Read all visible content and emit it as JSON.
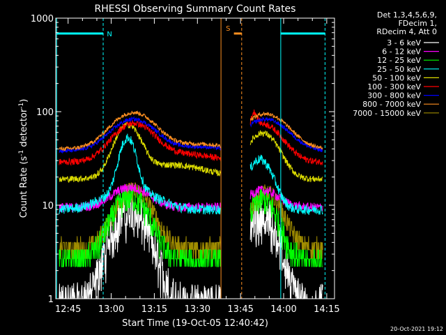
{
  "chart_data": {
    "type": "line",
    "title": "RHESSI Observing Summary Count Rates",
    "xlabel": "Start Time (19-Oct-05 12:40:42)",
    "ylabel_main": "Count Rate (s",
    "ylabel_sup1": "-1",
    "ylabel_mid": " detector",
    "ylabel_sup2": "-1",
    "ylabel_end": ")",
    "y_scale": "log",
    "ylim": [
      1,
      1000
    ],
    "xlim_minutes": [
      0,
      97
    ],
    "x_ticks": [
      {
        "label": "12:45",
        "min": 4.3
      },
      {
        "label": "13:00",
        "min": 19.3
      },
      {
        "label": "13:15",
        "min": 34.3
      },
      {
        "label": "13:30",
        "min": 49.3
      },
      {
        "label": "13:45",
        "min": 64.3
      },
      {
        "label": "14:00",
        "min": 79.3
      },
      {
        "label": "14:15",
        "min": 94.3
      }
    ],
    "y_ticks": [
      {
        "label": "1",
        "value": 1
      },
      {
        "label": "10",
        "value": 10
      },
      {
        "label": "100",
        "value": 100
      },
      {
        "label": "1000",
        "value": 1000
      }
    ],
    "legend": {
      "header": [
        "Det 1,3,4,5,6,9,",
        "FDecim 1,",
        "RDecim 4, Att 0"
      ],
      "placement": "right"
    },
    "series": [
      {
        "name": "3 - 6 keV",
        "color": "#ffffff"
      },
      {
        "name": "6 - 12 keV",
        "color": "#ff00ff"
      },
      {
        "name": "12 - 25 keV",
        "color": "#00ff00"
      },
      {
        "name": "25 - 50 keV",
        "color": "#00ffff"
      },
      {
        "name": "50 - 100 keV",
        "color": "#dcdc00"
      },
      {
        "name": "100 - 300 keV",
        "color": "#ff0000"
      },
      {
        "name": "300 - 800 keV",
        "color": "#0000ff"
      },
      {
        "name": "800 - 7000 keV",
        "color": "#ff9020"
      },
      {
        "name": "7000 - 15000 keV",
        "color": "#a08c00"
      }
    ],
    "gaps_minutes": [
      [
        57.5,
        67.5
      ]
    ],
    "annotations": [
      {
        "text": "N",
        "color": "#00ffff"
      },
      {
        "text": "S",
        "color": "#ff9020"
      }
    ],
    "timestamp": "20-Oct-2021 19:12"
  }
}
